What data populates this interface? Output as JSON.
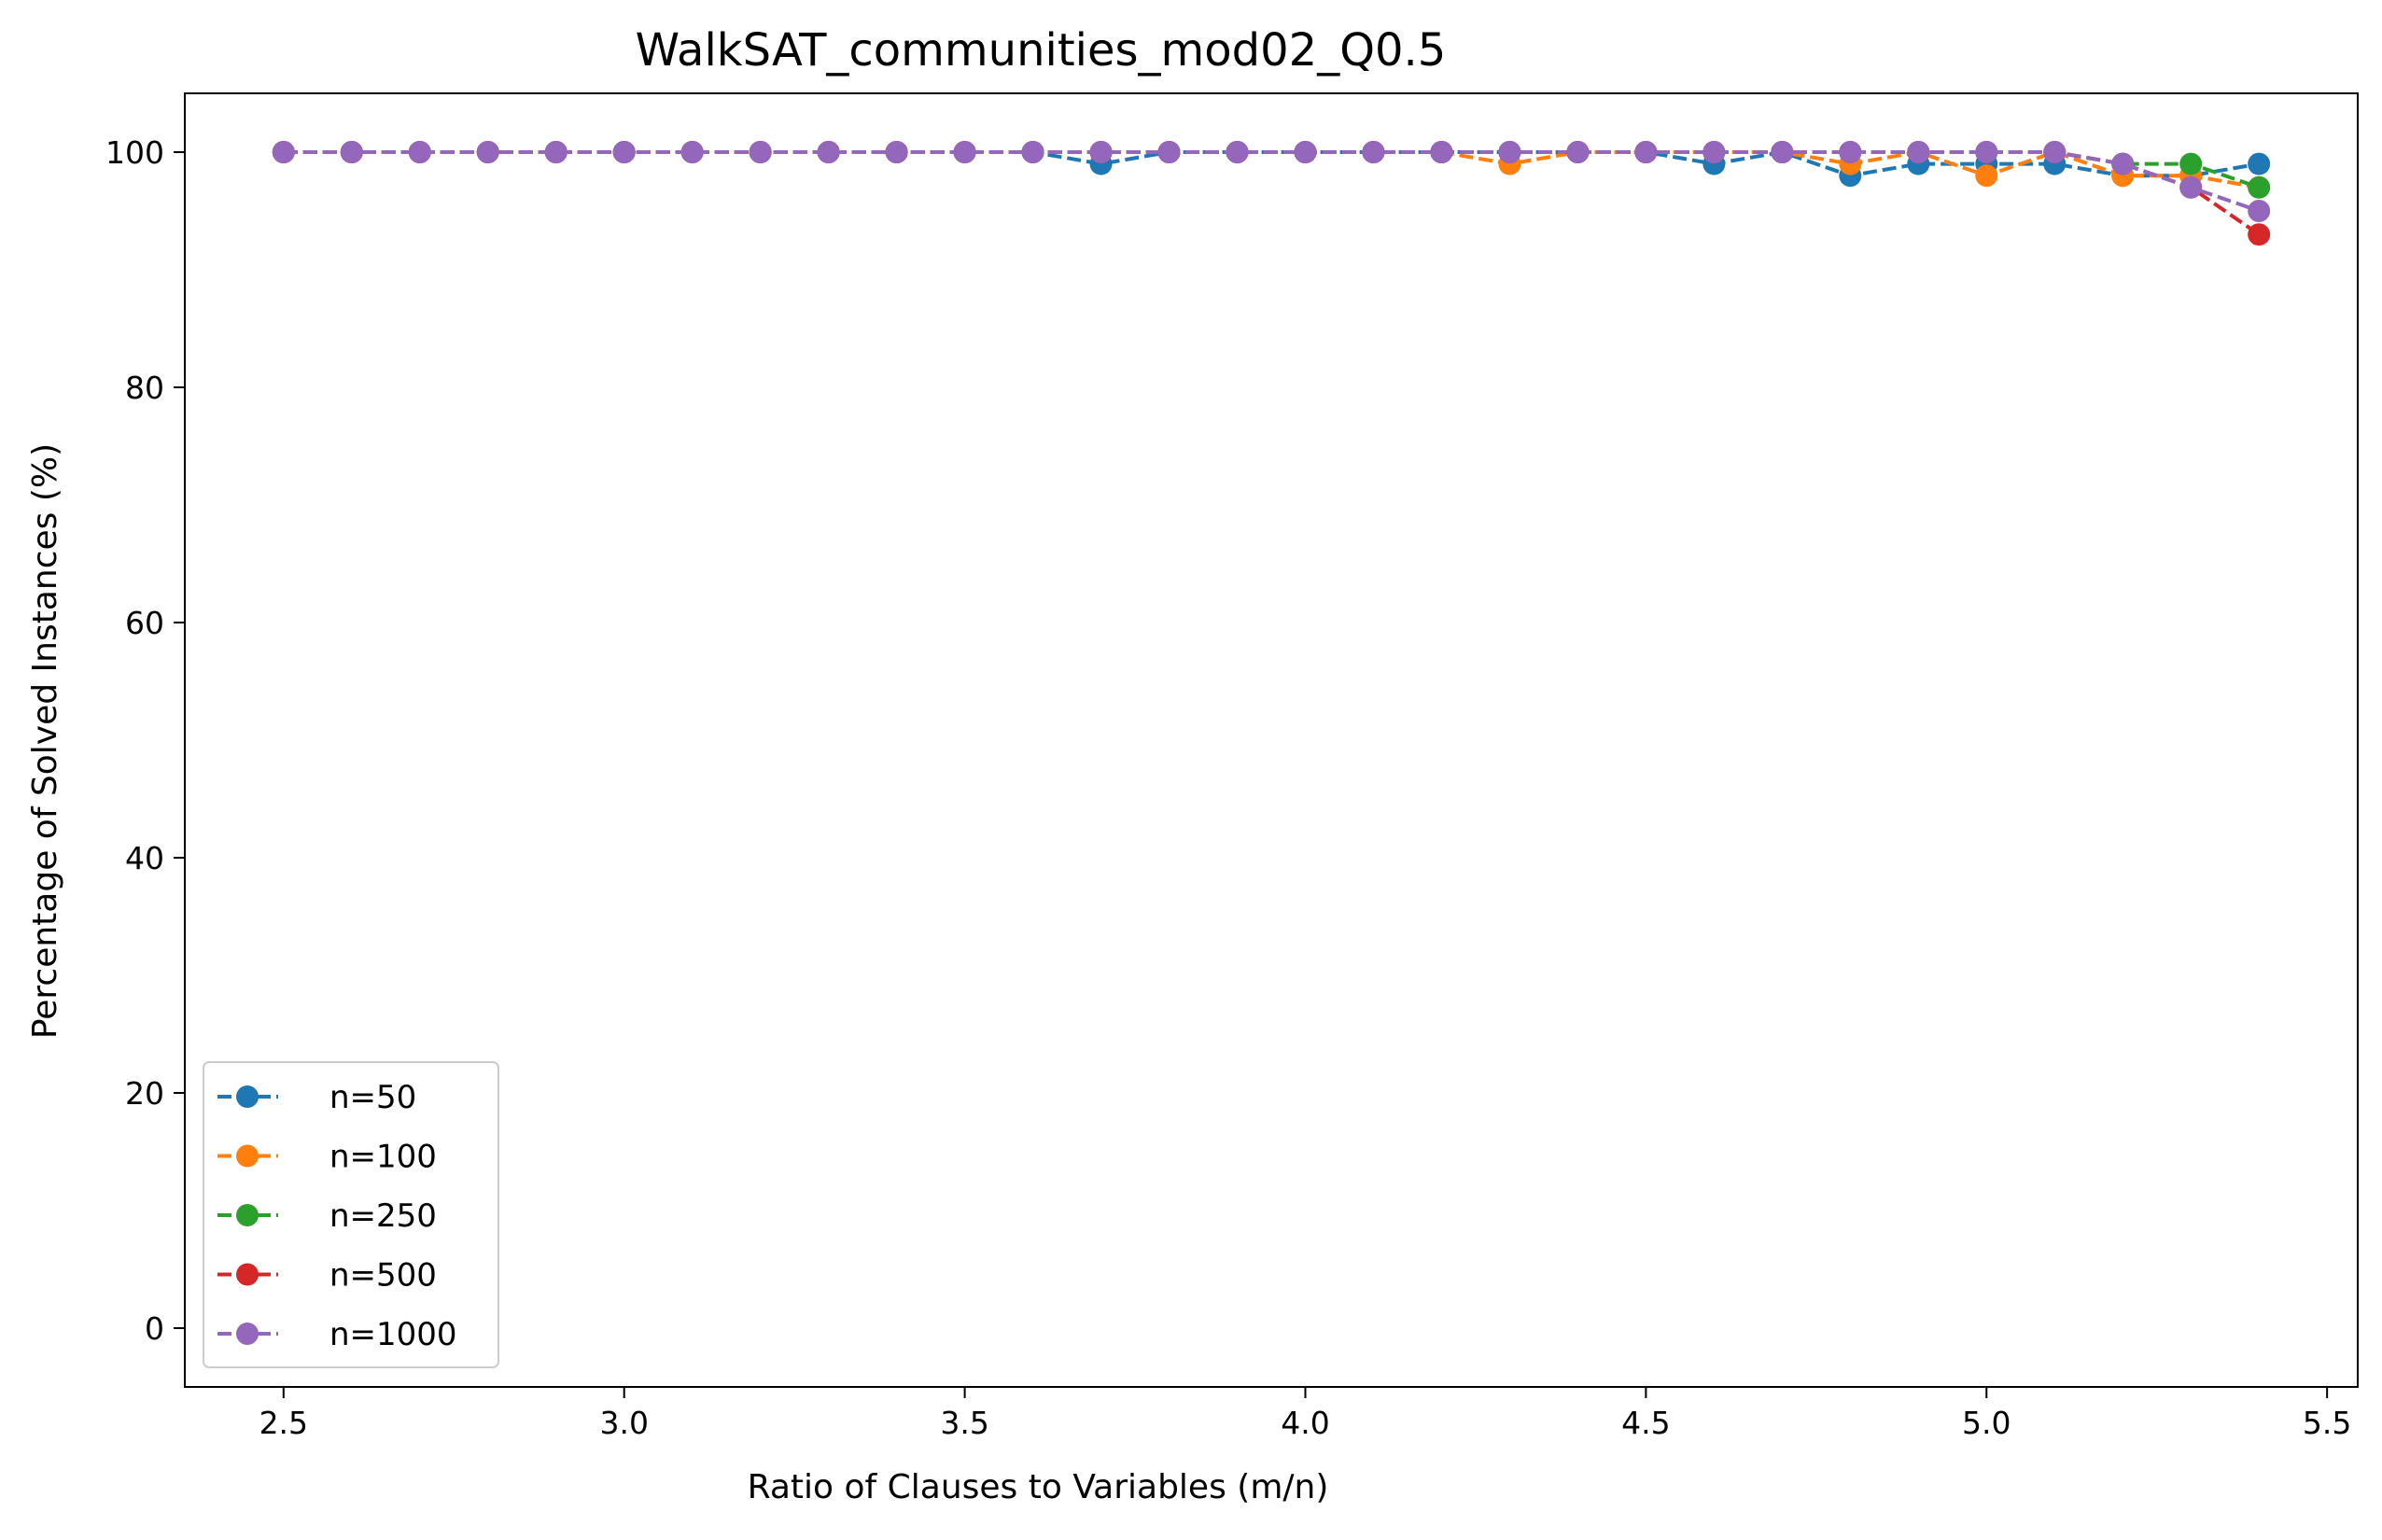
{
  "chart_data": {
    "type": "line",
    "title": "WalkSAT_communities_mod02_Q0.5",
    "xlabel": "Ratio of Clauses to Variables (m/n)",
    "ylabel": "Percentage of Solved Instances (%)",
    "xlim": [
      2.355,
      5.545
    ],
    "ylim": [
      -5,
      105
    ],
    "xticks": [
      2.5,
      3.0,
      3.5,
      4.0,
      4.5,
      5.0,
      5.5
    ],
    "xtick_labels": [
      "2.5",
      "3.0",
      "3.5",
      "4.0",
      "4.5",
      "5.0",
      "5.5"
    ],
    "yticks": [
      0,
      20,
      40,
      60,
      80,
      100
    ],
    "ytick_labels": [
      "0",
      "20",
      "40",
      "60",
      "80",
      "100"
    ],
    "grid": false,
    "legend_position": "lower-left",
    "line_style": "dashed",
    "marker": "circle",
    "x": [
      2.5,
      2.6,
      2.7,
      2.8,
      2.9,
      3.0,
      3.1,
      3.2,
      3.3,
      3.4,
      3.5,
      3.6,
      3.7,
      3.8,
      3.9,
      4.0,
      4.1,
      4.2,
      4.3,
      4.4,
      4.5,
      4.6,
      4.7,
      4.8,
      4.9,
      5.0,
      5.1,
      5.2,
      5.3,
      5.4
    ],
    "series": [
      {
        "name": "n=50",
        "color": "#1f77b4",
        "values": [
          100,
          100,
          100,
          100,
          100,
          100,
          100,
          100,
          100,
          100,
          100,
          100,
          99,
          100,
          100,
          100,
          100,
          100,
          100,
          100,
          100,
          99,
          100,
          98,
          99,
          99,
          99,
          98,
          98,
          99
        ]
      },
      {
        "name": "n=100",
        "color": "#ff7f0e",
        "values": [
          100,
          100,
          100,
          100,
          100,
          100,
          100,
          100,
          100,
          100,
          100,
          100,
          100,
          100,
          100,
          100,
          100,
          100,
          99,
          100,
          100,
          100,
          100,
          99,
          100,
          98,
          100,
          98,
          98,
          97
        ]
      },
      {
        "name": "n=250",
        "color": "#2ca02c",
        "values": [
          100,
          100,
          100,
          100,
          100,
          100,
          100,
          100,
          100,
          100,
          100,
          100,
          100,
          100,
          100,
          100,
          100,
          100,
          100,
          100,
          100,
          100,
          100,
          100,
          100,
          100,
          100,
          99,
          99,
          97
        ]
      },
      {
        "name": "n=500",
        "color": "#d62728",
        "values": [
          100,
          100,
          100,
          100,
          100,
          100,
          100,
          100,
          100,
          100,
          100,
          100,
          100,
          100,
          100,
          100,
          100,
          100,
          100,
          100,
          100,
          100,
          100,
          100,
          100,
          100,
          100,
          99,
          97,
          93
        ]
      },
      {
        "name": "n=1000",
        "color": "#9467bd",
        "values": [
          100,
          100,
          100,
          100,
          100,
          100,
          100,
          100,
          100,
          100,
          100,
          100,
          100,
          100,
          100,
          100,
          100,
          100,
          100,
          100,
          100,
          100,
          100,
          100,
          100,
          100,
          100,
          99,
          97,
          95
        ]
      }
    ]
  }
}
